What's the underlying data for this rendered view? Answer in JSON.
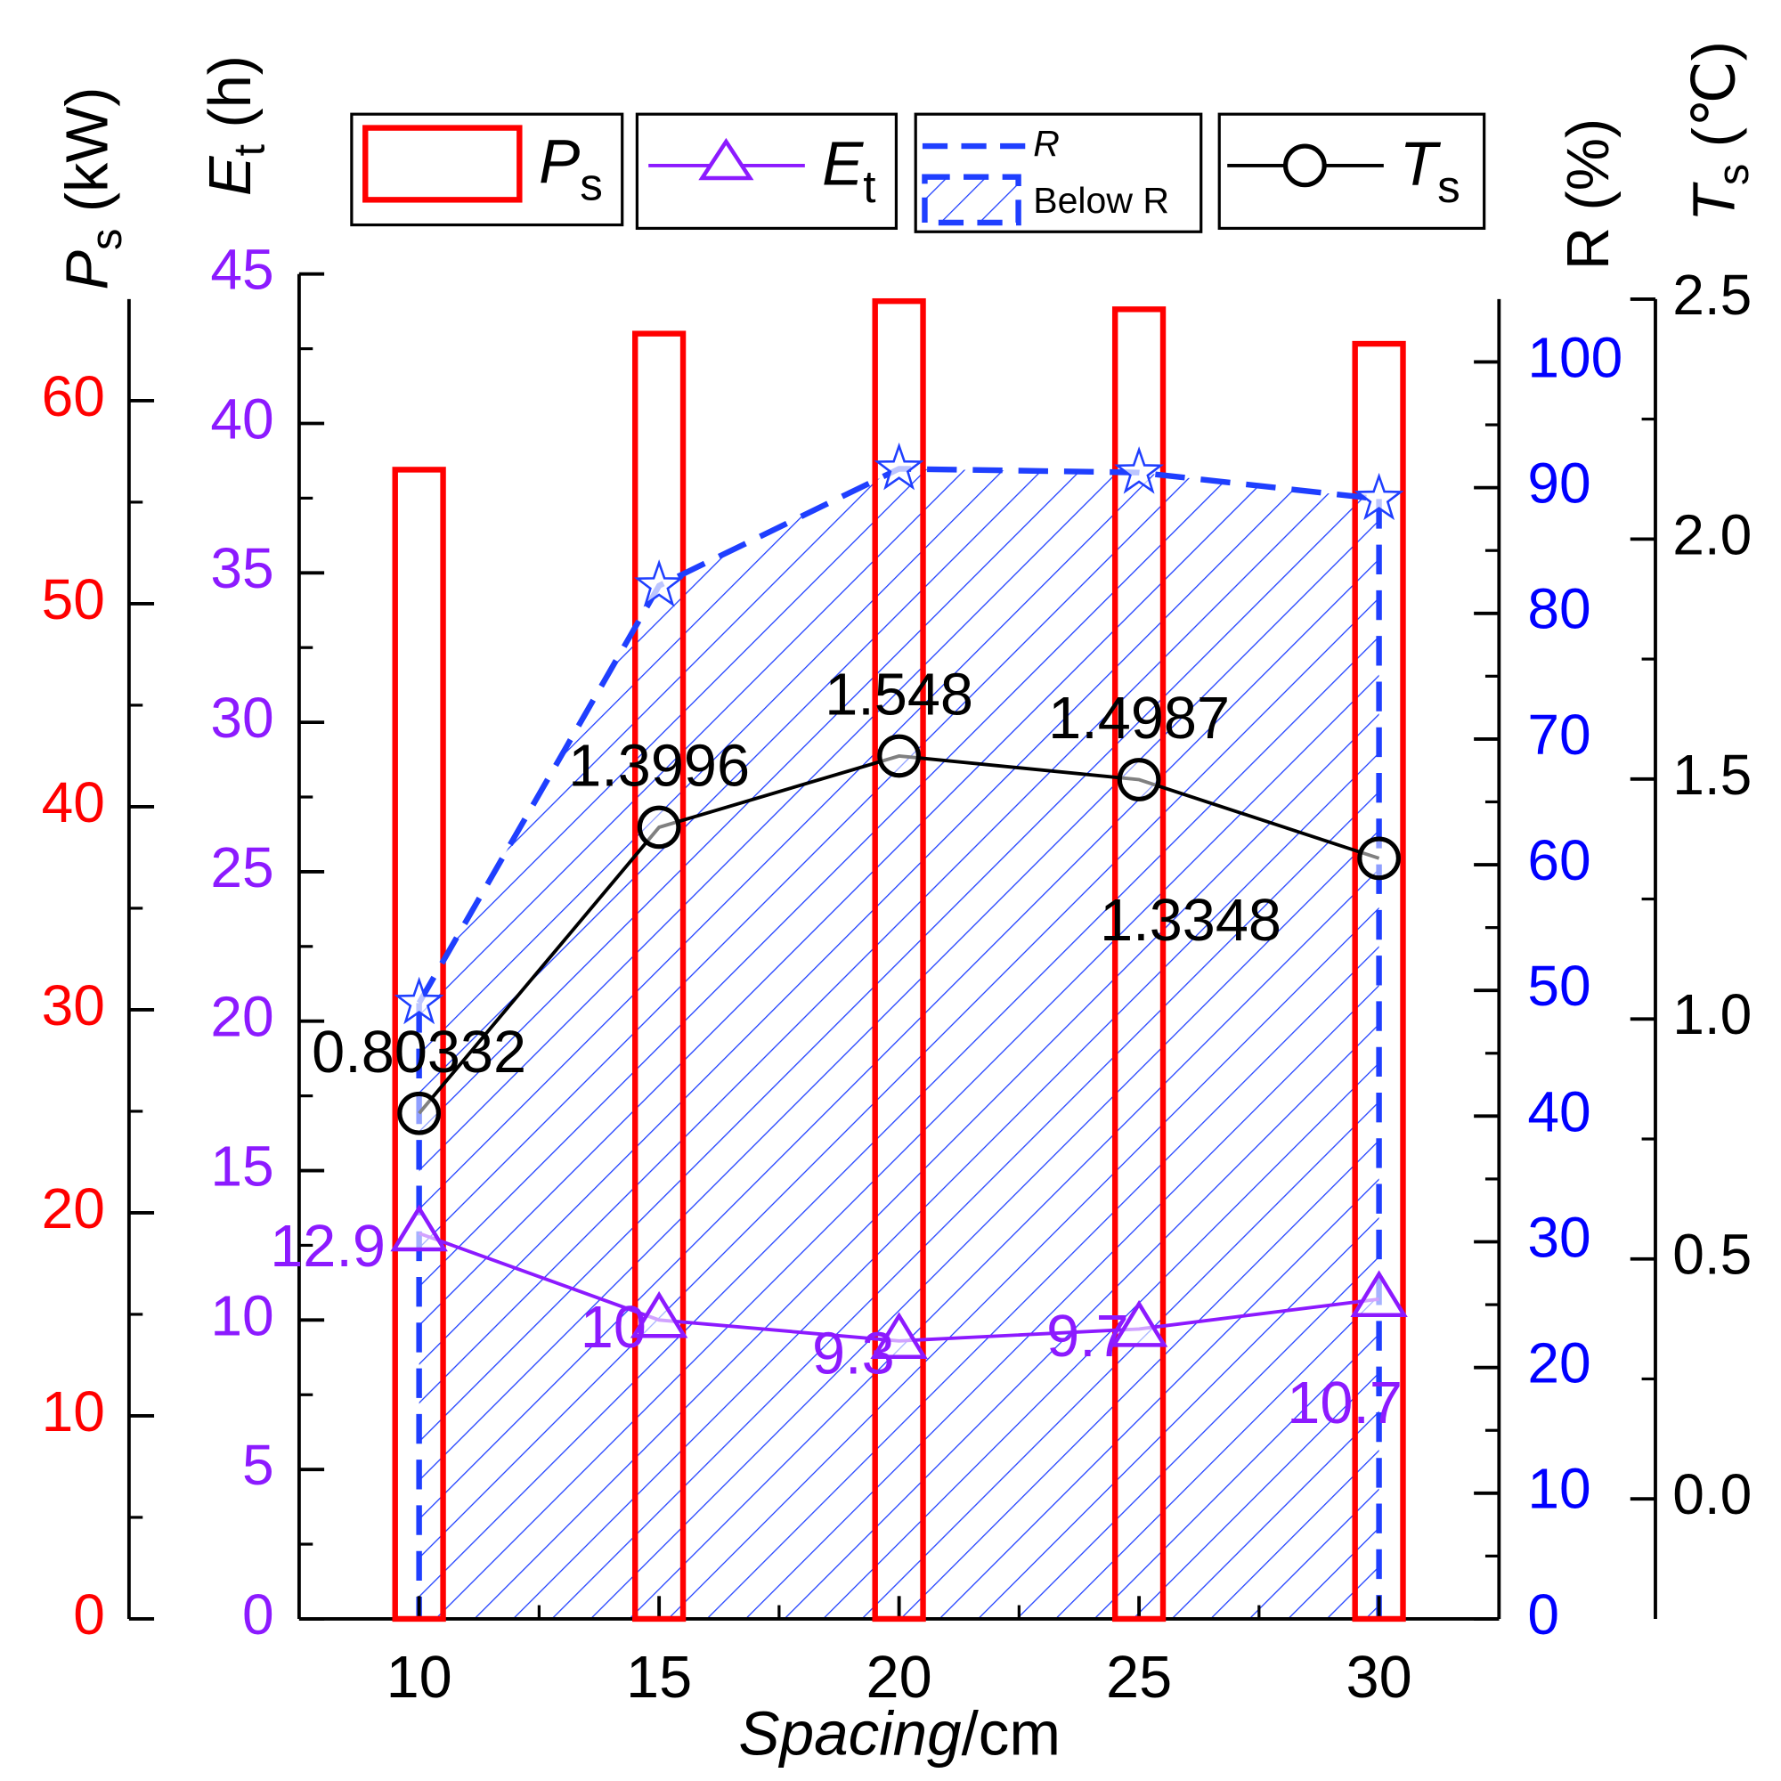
{
  "chart_data": {
    "type": "combo",
    "xlabel": "Spacing",
    "xlabel_unit": "/cm",
    "x": [
      10,
      15,
      20,
      25,
      30
    ],
    "xlim": [
      7.5,
      32.5
    ],
    "xticks": [
      10,
      15,
      20,
      25,
      30
    ],
    "axes": {
      "y": {
        "label": "P",
        "label_sub": "s",
        "label_unit": " (kW)",
        "color": "#ff0000",
        "lim": [
          0,
          65
        ],
        "ticks": [
          0,
          10,
          20,
          30,
          40,
          50,
          60
        ]
      },
      "y2": {
        "label": "E",
        "label_sub": "t",
        "label_unit": " (h)",
        "color": "#8c1aff",
        "lim": [
          0,
          45
        ],
        "ticks": [
          0,
          5,
          10,
          15,
          20,
          25,
          30,
          35,
          40,
          45
        ]
      },
      "y3": {
        "label": "R (%)",
        "color": "#0000ff",
        "lim": [
          0,
          105
        ],
        "ticks": [
          0,
          10,
          20,
          30,
          40,
          50,
          60,
          70,
          80,
          90,
          100
        ]
      },
      "y4": {
        "label": "T",
        "label_sub": "s",
        "label_unit": " (℃)",
        "color": "#000000",
        "lim": [
          -0.25,
          2.5
        ],
        "ticks": [
          {
            "value": 0,
            "label": "0.0"
          },
          0.5,
          {
            "value": 1,
            "label": "1.0"
          },
          1.5,
          {
            "value": 2,
            "label": "2.0"
          },
          2.5
        ]
      }
    },
    "series": [
      {
        "name": "P",
        "name_sub": "s",
        "type": "bar",
        "axis": "y",
        "color": "#ff0000",
        "values": [
          56.6,
          63.3,
          64.9,
          64.5,
          62.8
        ]
      },
      {
        "name": "E",
        "name_sub": "t",
        "type": "line",
        "marker": "triangle",
        "axis": "y2",
        "color": "#8c1aff",
        "values": [
          12.9,
          10,
          9.3,
          9.7,
          10.7
        ],
        "data_labels": true
      },
      {
        "name": "R",
        "area_name": "Below R",
        "type": "line",
        "marker": "star",
        "fill": "hatch",
        "axis": "y3",
        "color": "#1f3fff",
        "values": [
          49.0,
          82.2,
          91.5,
          91.2,
          89.1
        ]
      },
      {
        "name": "T",
        "name_sub": "s",
        "type": "line",
        "marker": "circle",
        "axis": "y4",
        "color": "#000000",
        "values": [
          0.80332,
          1.3996,
          1.548,
          1.4987,
          1.3348
        ],
        "data_labels": true
      }
    ]
  }
}
